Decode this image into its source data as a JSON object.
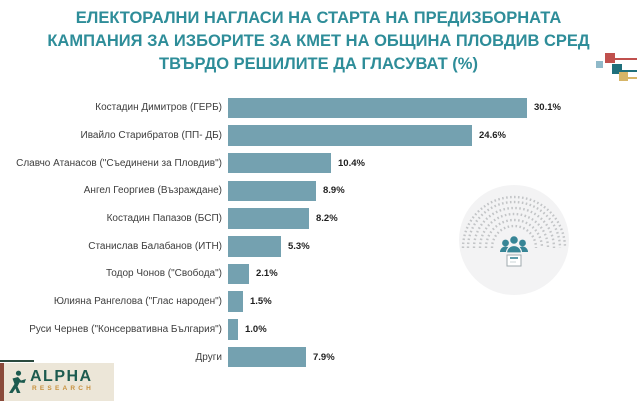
{
  "title": {
    "lines": [
      "ЕЛЕКТОРАЛНИ НАГЛАСИ НА СТАРТА НА ПРЕДИЗБОРНАТА",
      "КАМПАНИЯ ЗА ИЗБОРИТЕ ЗА КМЕТ НА ОБЩИНА ПЛОВДИВ СРЕД",
      "ТВЪРДО РЕШИЛИТЕ ДА ГЛАСУВАТ (%)"
    ]
  },
  "chart_data": {
    "type": "bar",
    "orientation": "horizontal",
    "title": "ЕЛЕКТОРАЛНИ НАГЛАСИ НА СТАРТА НА ПРЕДИЗБОРНАТА КАМПАНИЯ ЗА ИЗБОРИТЕ ЗА КМЕТ НА ОБЩИНА ПЛОВДИВ СРЕД ТВЪРДО РЕШИЛИТЕ ДА ГЛАСУВАТ (%)",
    "categories": [
      "Костадин Димитров (ГЕРБ)",
      "Ивайло Старибратов (ПП- ДБ)",
      "Славчо Атанасов (\"Съединени за Пловдив\")",
      "Ангел Георгиев (Възраждане)",
      "Костадин Папазов (БСП)",
      "Станислав Балабанов (ИТН)",
      "Тодор Чонов (\"Свобода\")",
      "Юлияна Рангелова (\"Глас народен\")",
      "Руси Чернев (\"Консервативна България\")",
      "Други"
    ],
    "values": [
      30.1,
      24.6,
      10.4,
      8.9,
      8.2,
      5.3,
      2.1,
      1.5,
      1.0,
      7.9
    ],
    "value_labels": [
      "30.1%",
      "24.6%",
      "10.4%",
      "8.9%",
      "8.2%",
      "5.3%",
      "2.1%",
      "1.5%",
      "1.0%",
      "7.9%"
    ],
    "unit": "%",
    "xlim": [
      0,
      33
    ],
    "grid": false,
    "legend": false,
    "bar_color": "#74a1b0"
  },
  "logo": {
    "name": "ALPHA",
    "subtext": "RESEARCH"
  },
  "icons": {
    "watermark": "parliament-hemicycle-with-voters-and-ballot-box",
    "corner_decoration": "colored-squares-with-connector-lines"
  },
  "colors": {
    "title": "#2e8d99",
    "bar": "#74a1b0",
    "label": "#3d3d3d",
    "value": "#1f1f1f",
    "logo-green": "#1d5b4f",
    "logo-orange": "#c8913f",
    "logo-bg": "#ece6d8",
    "logo-edge": "#8a4a3a",
    "deco-red": "#c0504d",
    "deco-teal": "#1f6f7b",
    "deco-blue": "#8fb9c9",
    "deco-tan": "#d6b567"
  }
}
